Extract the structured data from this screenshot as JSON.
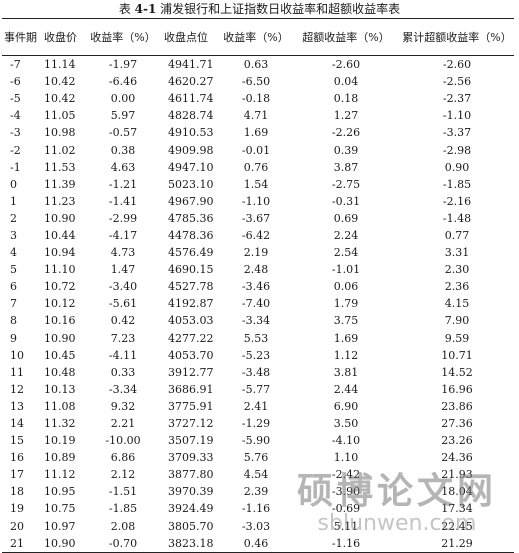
{
  "caption": {
    "prefix": "表 ",
    "number": "4-1",
    "title": "  浦发银行和上证指数日收益率和超额收益率表"
  },
  "headers": [
    "事件期",
    "收盘价",
    "收益率（%）",
    "收盘点位",
    "收益率（%）",
    "超额收益率（%）",
    "累计超额收益率（%）"
  ],
  "rows": [
    [
      "-7",
      "11.14",
      "-1.97",
      "4941.71",
      "0.63",
      "-2.60",
      "-2.60"
    ],
    [
      "-6",
      "10.42",
      "-6.46",
      "4620.27",
      "-6.50",
      "0.04",
      "-2.56"
    ],
    [
      "-5",
      "10.42",
      "0.00",
      "4611.74",
      "-0.18",
      "0.18",
      "-2.37"
    ],
    [
      "-4",
      "11.05",
      "5.97",
      "4828.74",
      "4.71",
      "1.27",
      "-1.10"
    ],
    [
      "-3",
      "10.98",
      "-0.57",
      "4910.53",
      "1.69",
      "-2.26",
      "-3.37"
    ],
    [
      "-2",
      "11.02",
      "0.38",
      "4909.98",
      "-0.01",
      "0.39",
      "-2.98"
    ],
    [
      "-1",
      "11.53",
      "4.63",
      "4947.10",
      "0.76",
      "3.87",
      "0.90"
    ],
    [
      "0",
      "11.39",
      "-1.21",
      "5023.10",
      "1.54",
      "-2.75",
      "-1.85"
    ],
    [
      "1",
      "11.23",
      "-1.41",
      "4967.90",
      "-1.10",
      "-0.31",
      "-2.16"
    ],
    [
      "2",
      "10.90",
      "-2.99",
      "4785.36",
      "-3.67",
      "0.69",
      "-1.48"
    ],
    [
      "3",
      "10.44",
      "-4.17",
      "4478.36",
      "-6.42",
      "2.24",
      "0.77"
    ],
    [
      "4",
      "10.94",
      "4.73",
      "4576.49",
      "2.19",
      "2.54",
      "3.31"
    ],
    [
      "5",
      "11.10",
      "1.47",
      "4690.15",
      "2.48",
      "-1.01",
      "2.30"
    ],
    [
      "6",
      "10.72",
      "-3.40",
      "4527.78",
      "-3.46",
      "0.06",
      "2.36"
    ],
    [
      "7",
      "10.12",
      "-5.61",
      "4192.87",
      "-7.40",
      "1.79",
      "4.15"
    ],
    [
      "8",
      "10.16",
      "0.42",
      "4053.03",
      "-3.34",
      "3.75",
      "7.90"
    ],
    [
      "9",
      "10.90",
      "7.23",
      "4277.22",
      "5.53",
      "1.69",
      "9.59"
    ],
    [
      "10",
      "10.45",
      "-4.11",
      "4053.70",
      "-5.23",
      "1.12",
      "10.71"
    ],
    [
      "11",
      "10.48",
      "0.33",
      "3912.77",
      "-3.48",
      "3.81",
      "14.52"
    ],
    [
      "12",
      "10.13",
      "-3.34",
      "3686.91",
      "-5.77",
      "2.44",
      "16.96"
    ],
    [
      "13",
      "11.08",
      "9.32",
      "3775.91",
      "2.41",
      "6.90",
      "23.86"
    ],
    [
      "14",
      "11.32",
      "2.21",
      "3727.12",
      "-1.29",
      "3.50",
      "27.36"
    ],
    [
      "15",
      "10.19",
      "-10.00",
      "3507.19",
      "-5.90",
      "-4.10",
      "23.26"
    ],
    [
      "16",
      "10.89",
      "6.86",
      "3709.33",
      "5.76",
      "1.10",
      "24.36"
    ],
    [
      "17",
      "11.12",
      "2.12",
      "3877.80",
      "4.54",
      "-2.42",
      "21.93"
    ],
    [
      "18",
      "10.95",
      "-1.51",
      "3970.39",
      "2.39",
      "-3.90",
      "18.04"
    ],
    [
      "19",
      "10.75",
      "-1.85",
      "3924.49",
      "-1.16",
      "-0.69",
      "17.34"
    ],
    [
      "20",
      "10.97",
      "2.08",
      "3805.70",
      "-3.03",
      "5.11",
      "22.45"
    ],
    [
      "21",
      "10.90",
      "-0.70",
      "3823.18",
      "0.46",
      "-1.16",
      "21.29"
    ]
  ],
  "watermark": {
    "title": "硕博论文网",
    "url": "sblunwen.com"
  }
}
